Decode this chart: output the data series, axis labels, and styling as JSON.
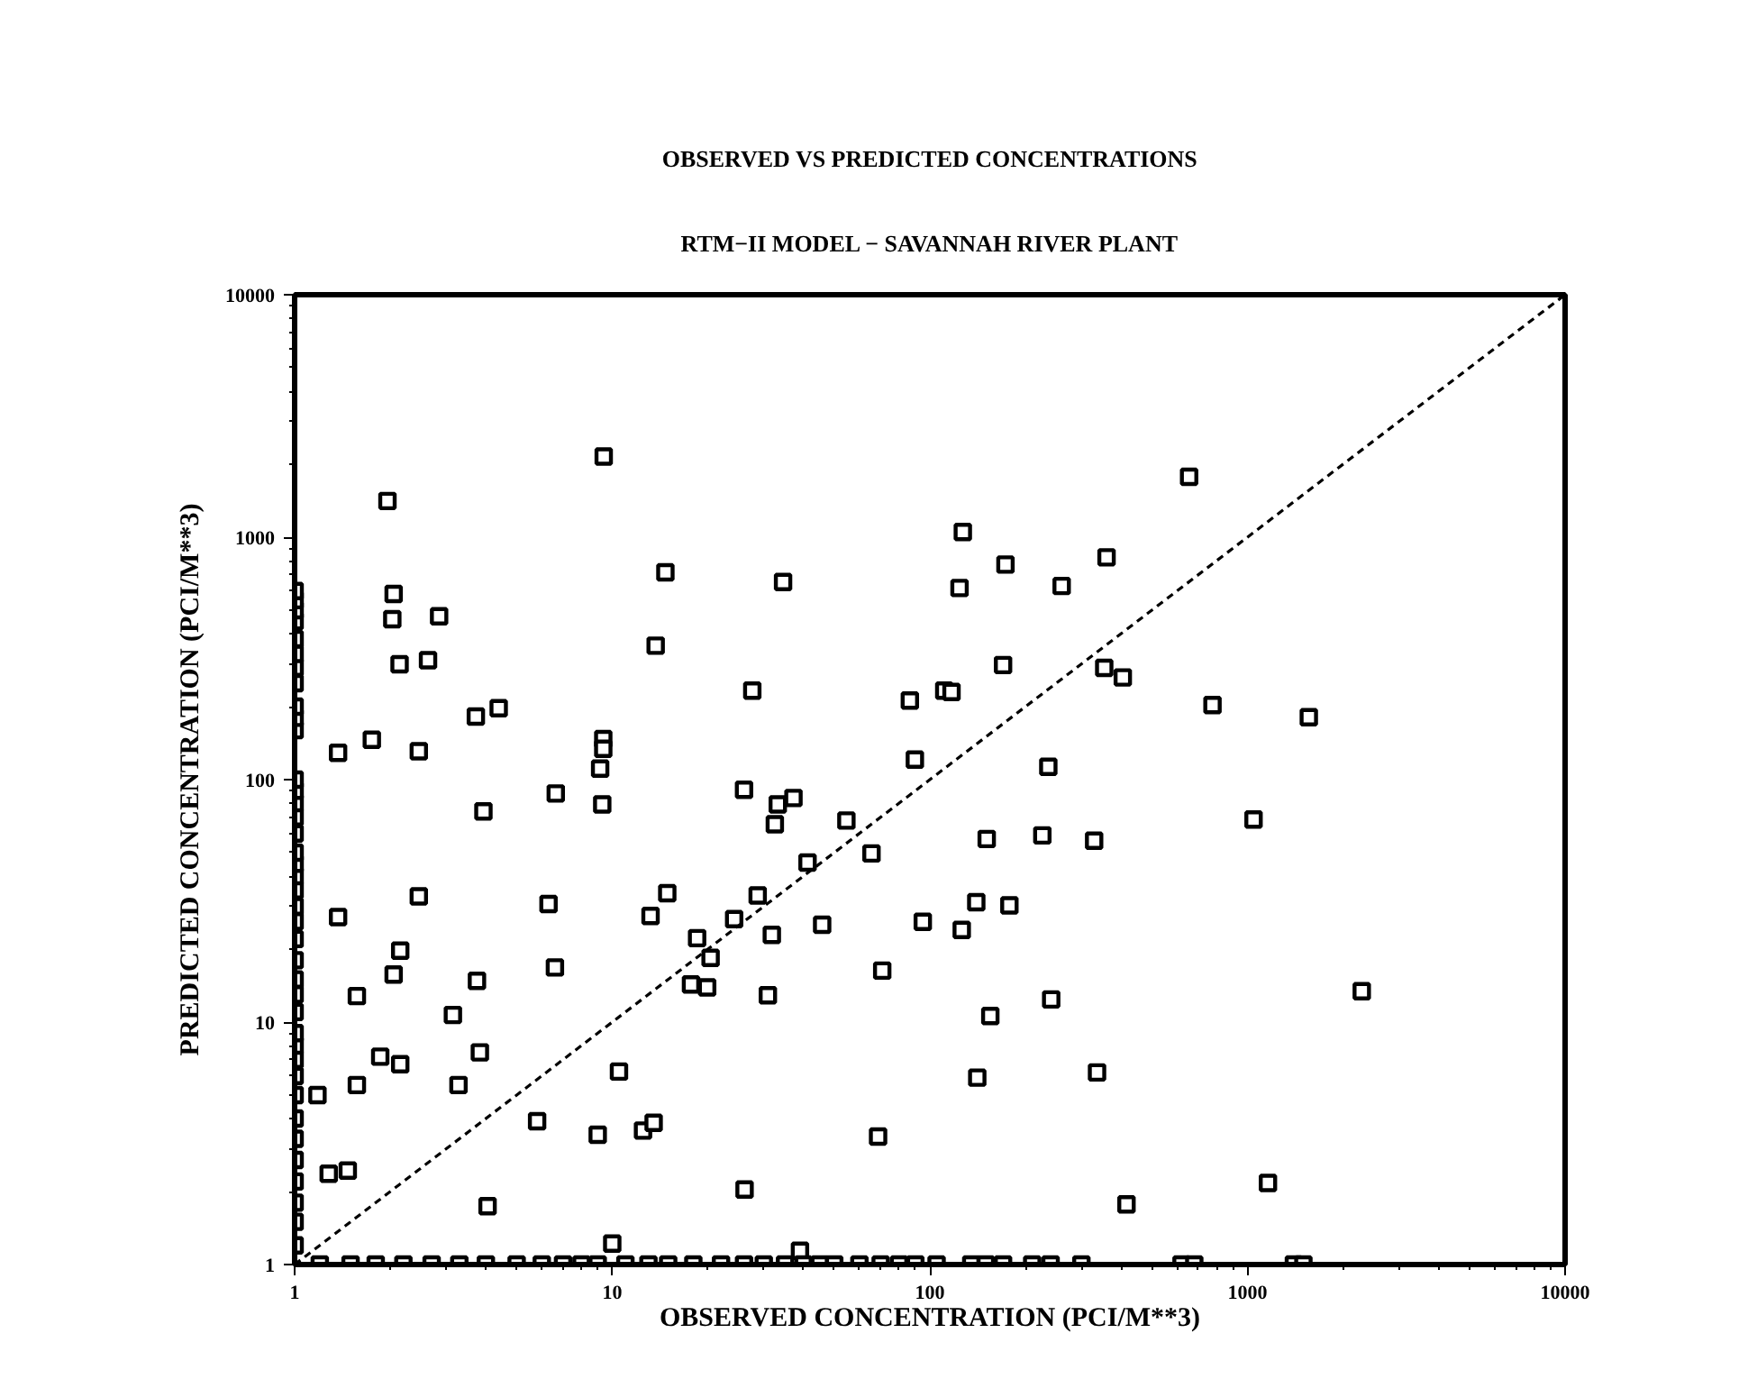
{
  "chart_data": {
    "type": "scatter",
    "title": "OBSERVED VS PREDICTED CONCENTRATIONS",
    "subtitle": "RTM−II MODEL − SAVANNAH RIVER PLANT",
    "xlabel": "OBSERVED CONCENTRATION (PCI/M**3)",
    "ylabel": "PREDICTED CONCENTRATION (PCI/M**3)",
    "log": "xy",
    "grid": false,
    "marker": "square",
    "xlim": [
      1,
      10000
    ],
    "ylim": [
      1,
      10000
    ],
    "xticks": [
      1,
      10,
      100,
      1000,
      10000
    ],
    "yticks": [
      1,
      10,
      100,
      1000,
      10000
    ],
    "series": [
      {
        "color": "#000000",
        "x": [
          1.96,
          9.4,
          2.05,
          2.03,
          2.85,
          2.14,
          2.63,
          14.7,
          34.5,
          13.7,
          3.72,
          4.39,
          1.37,
          1.75,
          2.46,
          27.6,
          9.37,
          9.37,
          9.16,
          6.64,
          3.93,
          9.3,
          86.5,
          111,
          117,
          89.7,
          26,
          33.2,
          37.2,
          32.5,
          54.6,
          127,
          124,
          173,
          260,
          360,
          655,
          170,
          354,
          405,
          776,
          1560,
          236,
          1045,
          151,
          226,
          329,
          140,
          178,
          126,
          241,
          155,
          2290,
          141,
          336,
          416,
          1160,
          1.37,
          2.46,
          2.15,
          2.05,
          1.57,
          3.15,
          3.75,
          1.86,
          2.15,
          1.57,
          1.18,
          3.28,
          3.83,
          1.28,
          1.47,
          4.05,
          6.3,
          6.6,
          13.2,
          14.9,
          18.5,
          20.4,
          17.7,
          19.9,
          24.2,
          28.7,
          31.8,
          30.9,
          41.2,
          65.5,
          45.8,
          70.8,
          95,
          10.5,
          5.8,
          9.0,
          12.5,
          13.5,
          68.7,
          26.1,
          10,
          39
        ],
        "values": [
          1410,
          2150,
          583,
          459,
          472,
          299,
          311,
          716,
          653,
          357,
          182,
          197,
          129,
          146,
          131,
          233,
          147,
          134,
          111,
          87.7,
          74,
          79,
          212,
          233,
          230,
          121,
          90.8,
          79,
          84,
          65.5,
          67.8,
          1050,
          617,
          771,
          629,
          826,
          1775,
          297,
          289,
          264,
          203,
          181,
          113,
          68.5,
          56.9,
          58.9,
          56,
          31.2,
          30.3,
          24,
          12.4,
          10.6,
          13.4,
          5.9,
          6.2,
          1.77,
          2.17,
          27.1,
          33,
          19.7,
          15.7,
          12.8,
          10.7,
          14.8,
          7.2,
          6.7,
          5.5,
          5.0,
          5.5,
          7.5,
          2.37,
          2.44,
          1.74,
          30.7,
          16.8,
          27.4,
          34,
          22.2,
          18.4,
          14.3,
          13.9,
          26.6,
          33.3,
          22.9,
          12.9,
          45.5,
          49.6,
          25.2,
          16.3,
          25.9,
          6.25,
          3.9,
          3.43,
          3.57,
          3.84,
          3.37,
          2.04,
          1.22,
          1.14
        ]
      },
      {
        "color": "#000000",
        "x": [
          1,
          1,
          1,
          1,
          1,
          1,
          1,
          1,
          1,
          1,
          1,
          1,
          1,
          1,
          1,
          1,
          1,
          1,
          1,
          1,
          1,
          1,
          1,
          1,
          1,
          1,
          1,
          1,
          1,
          1,
          1,
          1,
          1,
          1,
          1,
          1,
          1,
          1,
          1
        ],
        "values": [
          1.2,
          1.5,
          1.8,
          2.2,
          2.7,
          3.3,
          4,
          5,
          6,
          7,
          8,
          9,
          11,
          13,
          15,
          18,
          22,
          26,
          30,
          35,
          40,
          45,
          50,
          60,
          70,
          80,
          90,
          100,
          160,
          180,
          200,
          250,
          290,
          330,
          380,
          450,
          500,
          550,
          600
        ]
      },
      {
        "color": "#000000",
        "x": [
          1.2,
          1.5,
          1.8,
          2.2,
          2.7,
          3.3,
          4,
          5,
          6,
          7,
          8,
          9,
          11,
          13,
          15,
          18,
          22,
          26,
          30,
          35,
          40,
          45,
          50,
          60,
          70,
          80,
          90,
          105,
          135,
          150,
          170,
          210,
          240,
          300,
          620,
          680,
          1400,
          1500
        ],
        "values": [
          1,
          1,
          1,
          1,
          1,
          1,
          1,
          1,
          1,
          1,
          1,
          1,
          1,
          1,
          1,
          1,
          1,
          1,
          1,
          1,
          1,
          1,
          1,
          1,
          1,
          1,
          1,
          1,
          1,
          1,
          1,
          1,
          1,
          1,
          1,
          1,
          1,
          1
        ]
      },
      {
        "type": "line",
        "marker": "none",
        "line_style": "dashed",
        "color": "#000000",
        "x": [
          1,
          10000
        ],
        "values": [
          1,
          10000
        ]
      }
    ]
  }
}
